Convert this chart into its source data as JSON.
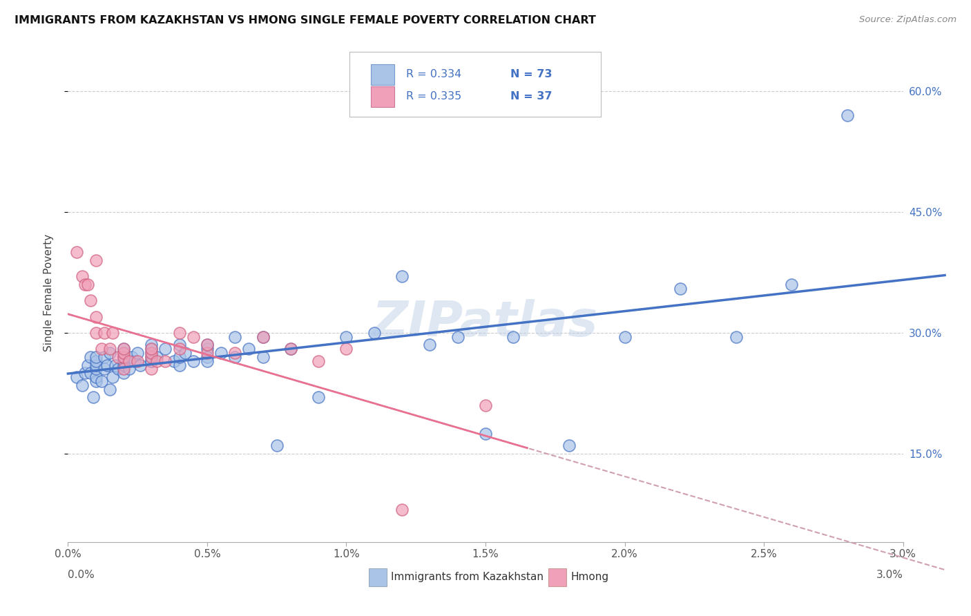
{
  "title": "IMMIGRANTS FROM KAZAKHSTAN VS HMONG SINGLE FEMALE POVERTY CORRELATION CHART",
  "source": "Source: ZipAtlas.com",
  "ylabel": "Single Female Poverty",
  "y_ticks": [
    0.15,
    0.3,
    0.45,
    0.6
  ],
  "y_tick_labels": [
    "15.0%",
    "30.0%",
    "45.0%",
    "60.0%"
  ],
  "xmin": 0.0,
  "xmax": 0.03,
  "ymin": 0.04,
  "ymax": 0.66,
  "legend_r1": "R = 0.334",
  "legend_n1": "N = 73",
  "legend_r2": "R = 0.335",
  "legend_n2": "N = 37",
  "legend_label1": "Immigrants from Kazakhstan",
  "legend_label2": "Hmong",
  "color_blue": "#aac4e8",
  "color_pink": "#f0a0b8",
  "color_blue_dark": "#4472c4",
  "trendline_blue": "#4472c4",
  "trendline_pink_dashed": "#d0a0b0",
  "trendline_pink_solid": "#e87090",
  "watermark": "ZIPatlas",
  "blue_x": [
    0.0003,
    0.0005,
    0.0006,
    0.0007,
    0.0008,
    0.0008,
    0.0009,
    0.001,
    0.001,
    0.001,
    0.001,
    0.001,
    0.001,
    0.0012,
    0.0013,
    0.0013,
    0.0014,
    0.0015,
    0.0015,
    0.0016,
    0.0017,
    0.0018,
    0.002,
    0.002,
    0.002,
    0.002,
    0.002,
    0.002,
    0.0022,
    0.0023,
    0.0024,
    0.0025,
    0.0026,
    0.003,
    0.003,
    0.003,
    0.003,
    0.003,
    0.003,
    0.0032,
    0.0035,
    0.0038,
    0.004,
    0.004,
    0.004,
    0.0042,
    0.0045,
    0.005,
    0.005,
    0.005,
    0.005,
    0.0055,
    0.006,
    0.006,
    0.0065,
    0.007,
    0.007,
    0.0075,
    0.008,
    0.009,
    0.01,
    0.011,
    0.012,
    0.013,
    0.014,
    0.015,
    0.016,
    0.018,
    0.02,
    0.022,
    0.024,
    0.026,
    0.028
  ],
  "blue_y": [
    0.245,
    0.235,
    0.25,
    0.26,
    0.25,
    0.27,
    0.22,
    0.24,
    0.245,
    0.255,
    0.26,
    0.265,
    0.27,
    0.24,
    0.255,
    0.27,
    0.26,
    0.23,
    0.275,
    0.245,
    0.26,
    0.255,
    0.25,
    0.26,
    0.265,
    0.27,
    0.275,
    0.28,
    0.255,
    0.27,
    0.265,
    0.275,
    0.26,
    0.265,
    0.27,
    0.275,
    0.28,
    0.285,
    0.265,
    0.27,
    0.28,
    0.265,
    0.26,
    0.285,
    0.27,
    0.275,
    0.265,
    0.28,
    0.27,
    0.285,
    0.265,
    0.275,
    0.27,
    0.295,
    0.28,
    0.27,
    0.295,
    0.16,
    0.28,
    0.22,
    0.295,
    0.3,
    0.37,
    0.285,
    0.295,
    0.175,
    0.295,
    0.16,
    0.295,
    0.355,
    0.295,
    0.36,
    0.57
  ],
  "pink_x": [
    0.0003,
    0.0005,
    0.0006,
    0.0007,
    0.0008,
    0.001,
    0.001,
    0.001,
    0.0012,
    0.0013,
    0.0015,
    0.0016,
    0.0018,
    0.002,
    0.002,
    0.002,
    0.002,
    0.0022,
    0.0025,
    0.003,
    0.003,
    0.003,
    0.003,
    0.0032,
    0.0035,
    0.004,
    0.004,
    0.0045,
    0.005,
    0.005,
    0.006,
    0.007,
    0.008,
    0.009,
    0.01,
    0.012,
    0.015
  ],
  "pink_y": [
    0.4,
    0.37,
    0.36,
    0.36,
    0.34,
    0.39,
    0.32,
    0.3,
    0.28,
    0.3,
    0.28,
    0.3,
    0.27,
    0.27,
    0.275,
    0.28,
    0.255,
    0.265,
    0.265,
    0.27,
    0.275,
    0.28,
    0.255,
    0.265,
    0.265,
    0.28,
    0.3,
    0.295,
    0.275,
    0.285,
    0.275,
    0.295,
    0.28,
    0.265,
    0.28,
    0.08,
    0.21
  ]
}
